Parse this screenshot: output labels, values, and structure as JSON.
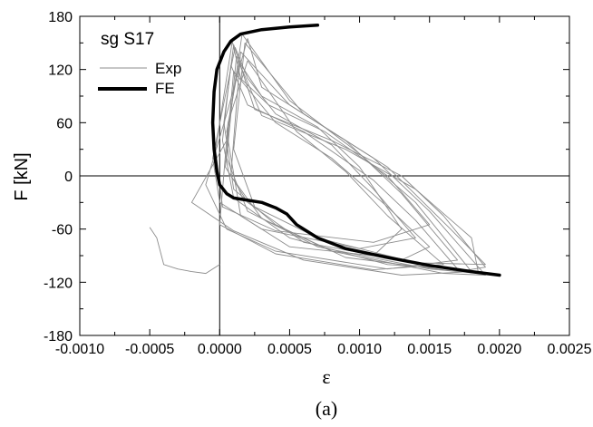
{
  "chart_data": {
    "type": "line",
    "title": "",
    "xlabel": "ε",
    "ylabel": "F  [kN]",
    "caption": "(a)",
    "legend_title": "sg S17",
    "legend_position": "top-left",
    "xlim": [
      -0.001,
      0.0025
    ],
    "ylim": [
      -180,
      180
    ],
    "grid": false,
    "zero_lines": true,
    "x_ticks": [
      -0.001,
      -0.0005,
      0.0,
      0.0005,
      0.001,
      0.0015,
      0.002,
      0.0025
    ],
    "x_tick_labels": [
      "-0.0010",
      "-0.0005",
      "0.0000",
      "0.0005",
      "0.0010",
      "0.0015",
      "0.0020",
      "0.0025"
    ],
    "y_ticks": [
      -180,
      -120,
      -60,
      0,
      60,
      120,
      180
    ],
    "y_tick_labels": [
      "-180",
      "-120",
      "-60",
      "0",
      "60",
      "120",
      "180"
    ],
    "series": [
      {
        "name": "Exp",
        "color": "#8c8c8c",
        "style": "thin",
        "loops": [
          [
            [
              0.0001,
              148
            ],
            [
              0.00025,
              75
            ],
            [
              0.0008,
              40
            ],
            [
              0.0013,
              0
            ],
            [
              0.0016,
              -45
            ],
            [
              0.0019,
              -103
            ],
            [
              0.0017,
              -108
            ],
            [
              0.0009,
              -92
            ],
            [
              0.0004,
              -55
            ],
            [
              0.0001,
              -15
            ],
            [
              3e-05,
              60
            ],
            [
              0.0001,
              148
            ]
          ],
          [
            [
              0.00012,
              135
            ],
            [
              0.0003,
              68
            ],
            [
              0.0009,
              30
            ],
            [
              0.0014,
              -15
            ],
            [
              0.0018,
              -70
            ],
            [
              0.00185,
              -110
            ],
            [
              0.0015,
              -105
            ],
            [
              0.0007,
              -80
            ],
            [
              0.0002,
              -40
            ],
            [
              5e-05,
              20
            ],
            [
              0.00012,
              135
            ]
          ],
          [
            [
              0.00015,
              140
            ],
            [
              0.0005,
              80
            ],
            [
              0.0011,
              20
            ],
            [
              0.0015,
              -40
            ],
            [
              0.0019,
              -112
            ],
            [
              0.0016,
              -110
            ],
            [
              0.0008,
              -85
            ],
            [
              0.0003,
              -48
            ],
            [
              8e-05,
              0
            ],
            [
              0.00015,
              140
            ]
          ],
          [
            [
              8e-05,
              125
            ],
            [
              0.0002,
              80
            ],
            [
              0.0006,
              50
            ],
            [
              0.0011,
              -5
            ],
            [
              0.0014,
              -50
            ],
            [
              0.0017,
              -105
            ],
            [
              0.0012,
              -100
            ],
            [
              0.0005,
              -70
            ],
            [
              0.0001,
              -25
            ],
            [
              2e-05,
              40
            ],
            [
              8e-05,
              125
            ]
          ],
          [
            [
              0.0001,
              118
            ],
            [
              0.0004,
              60
            ],
            [
              0.0008,
              20
            ],
            [
              0.0012,
              -35
            ],
            [
              0.0015,
              -80
            ],
            [
              0.0013,
              -95
            ],
            [
              0.0006,
              -75
            ],
            [
              0.0002,
              -30
            ],
            [
              4e-05,
              10
            ],
            [
              0.0001,
              118
            ]
          ],
          [
            [
              0.00018,
              150
            ],
            [
              0.0006,
              70
            ],
            [
              0.0012,
              10
            ],
            [
              0.00165,
              -60
            ],
            [
              0.0019,
              -100
            ],
            [
              0.0014,
              -98
            ],
            [
              0.0007,
              -70
            ],
            [
              0.00025,
              -35
            ],
            [
              0.0001,
              30
            ],
            [
              0.00018,
              150
            ]
          ],
          [
            [
              0.00014,
              128
            ],
            [
              0.0003,
              90
            ],
            [
              0.0007,
              55
            ],
            [
              0.001,
              10
            ],
            [
              0.0013,
              -60
            ],
            [
              0.0011,
              -90
            ],
            [
              0.0005,
              -80
            ],
            [
              0.00015,
              -45
            ],
            [
              5e-05,
              50
            ],
            [
              0.00014,
              128
            ]
          ],
          [
            [
              0.0002,
              155
            ],
            [
              0.0003,
              100
            ],
            [
              0.0009,
              40
            ],
            [
              0.0013,
              -20
            ],
            [
              0.0017,
              -95
            ],
            [
              0.0012,
              -105
            ],
            [
              0.0004,
              -85
            ],
            [
              5e-05,
              -60
            ],
            [
              -0.0001,
              -10
            ],
            [
              5e-05,
              70
            ],
            [
              0.0002,
              155
            ]
          ],
          [
            [
              0.00011,
              145
            ],
            [
              0.0002,
              110
            ],
            [
              0.0004,
              70
            ],
            [
              0.0008,
              35
            ],
            [
              0.0011,
              -15
            ],
            [
              0.0014,
              -70
            ],
            [
              0.001,
              -82
            ],
            [
              0.0003,
              -60
            ],
            [
              0.0,
              -30
            ],
            [
              -5e-05,
              20
            ],
            [
              0.00011,
              145
            ]
          ],
          [
            [
              0.00016,
              160
            ],
            [
              0.0005,
              85
            ],
            [
              0.001,
              25
            ],
            [
              0.0014,
              -30
            ],
            [
              0.0018,
              -108
            ],
            [
              0.0013,
              -112
            ],
            [
              0.0006,
              -95
            ],
            [
              0.0001,
              -62
            ],
            [
              -0.0002,
              -30
            ],
            [
              5e-05,
              40
            ],
            [
              0.00016,
              160
            ]
          ],
          [
            [
              0.0002,
              130
            ],
            [
              0.00055,
              50
            ],
            [
              0.0009,
              5
            ],
            [
              0.0012,
              -45
            ],
            [
              0.0016,
              -100
            ],
            [
              0.0011,
              -106
            ],
            [
              0.0004,
              -88
            ],
            [
              0.0,
              -55
            ],
            [
              6e-05,
              60
            ],
            [
              0.0002,
              130
            ]
          ],
          [
            [
              9e-05,
              152
            ],
            [
              0.00015,
              110
            ],
            [
              0.00035,
              80
            ],
            [
              0.00075,
              50
            ],
            [
              0.0012,
              0
            ],
            [
              0.0015,
              -55
            ],
            [
              0.0011,
              -75
            ],
            [
              0.0004,
              -62
            ],
            [
              2e-05,
              -35
            ],
            [
              -3e-05,
              30
            ],
            [
              9e-05,
              152
            ]
          ]
        ]
      },
      {
        "name": "FE",
        "color": "#000000",
        "style": "thick",
        "x": [
          0.0007,
          0.0005,
          0.0003,
          0.00015,
          8e-05,
          3e-05,
          -2e-05,
          -4e-05,
          -5e-05,
          -4e-05,
          -2e-05,
          0.0,
          5e-05,
          0.0001,
          0.00018,
          0.0003,
          0.0004,
          0.00048,
          0.00055,
          0.0007,
          0.0009,
          0.0012,
          0.0015,
          0.0018,
          0.002
        ],
        "y": [
          170,
          168,
          165,
          160,
          152,
          140,
          120,
          95,
          60,
          30,
          5,
          -10,
          -20,
          -25,
          -27,
          -30,
          -36,
          -43,
          -55,
          -70,
          -82,
          -92,
          -101,
          -108,
          -112
        ]
      }
    ],
    "lead_in_exp": {
      "x": [
        -0.0005,
        -0.00045,
        -0.0004,
        -0.0003,
        -0.0002,
        -0.0001,
        0.0
      ],
      "y": [
        -58,
        -70,
        -100,
        -105,
        -108,
        -110,
        -100
      ]
    }
  }
}
